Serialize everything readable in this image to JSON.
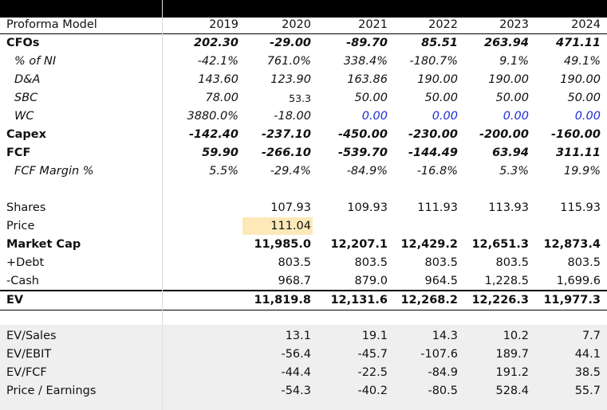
{
  "header": {
    "title": "Proforma Model",
    "years": [
      "2019",
      "2020",
      "2021",
      "2022",
      "2023",
      "2024"
    ]
  },
  "rows": [
    {
      "label": "CFOs",
      "values": [
        "202.30",
        "-29.00",
        "-89.70",
        "85.51",
        "263.94",
        "471.11"
      ]
    },
    {
      "label": "% of NI",
      "values": [
        "-42.1%",
        "761.0%",
        "338.4%",
        "-180.7%",
        "9.1%",
        "49.1%"
      ]
    },
    {
      "label": "D&A",
      "values": [
        "143.60",
        "123.90",
        "163.86",
        "190.00",
        "190.00",
        "190.00"
      ]
    },
    {
      "label": "SBC",
      "values": [
        "78.00",
        "53.3",
        "50.00",
        "50.00",
        "50.00",
        "50.00"
      ]
    },
    {
      "label": "WC",
      "values": [
        "3880.0%",
        "-18.00",
        "0.00",
        "0.00",
        "0.00",
        "0.00"
      ]
    },
    {
      "label": "Capex",
      "values": [
        "-142.40",
        "-237.10",
        "-450.00",
        "-230.00",
        "-200.00",
        "-160.00"
      ]
    },
    {
      "label": "FCF",
      "values": [
        "59.90",
        "-266.10",
        "-539.70",
        "-144.49",
        "63.94",
        "311.11"
      ]
    },
    {
      "label": "FCF Margin %",
      "values": [
        "5.5%",
        "-29.4%",
        "-84.9%",
        "-16.8%",
        "5.3%",
        "19.9%"
      ]
    },
    {
      "label": "Shares",
      "values": [
        "",
        "107.93",
        "109.93",
        "111.93",
        "113.93",
        "115.93"
      ]
    },
    {
      "label": "Price",
      "values": [
        "",
        "111.04",
        "",
        "",
        "",
        ""
      ]
    },
    {
      "label": "Market Cap",
      "values": [
        "",
        "11,985.0",
        "12,207.1",
        "12,429.2",
        "12,651.3",
        "12,873.4"
      ]
    },
    {
      "label": "+Debt",
      "values": [
        "",
        "803.5",
        "803.5",
        "803.5",
        "803.5",
        "803.5"
      ]
    },
    {
      "label": "-Cash",
      "values": [
        "",
        "968.7",
        "879.0",
        "964.5",
        "1,228.5",
        "1,699.6"
      ]
    },
    {
      "label": "EV",
      "values": [
        "",
        "11,819.8",
        "12,131.6",
        "12,268.2",
        "12,226.3",
        "11,977.3"
      ]
    },
    {
      "label": "EV/Sales",
      "values": [
        "",
        "13.1",
        "19.1",
        "14.3",
        "10.2",
        "7.7"
      ]
    },
    {
      "label": "EV/EBIT",
      "values": [
        "",
        "-56.4",
        "-45.7",
        "-107.6",
        "189.7",
        "44.1"
      ]
    },
    {
      "label": "EV/FCF",
      "values": [
        "",
        "-44.4",
        "-22.5",
        "-84.9",
        "191.2",
        "38.5"
      ]
    },
    {
      "label": "Price / Earnings",
      "values": [
        "",
        "-54.3",
        "-40.2",
        "-80.5",
        "528.4",
        "55.7"
      ]
    }
  ],
  "colors": {
    "header_bg": "#000000",
    "input_blue": "#1f2fd6",
    "price_highlight": "#fde9b8",
    "multiples_band": "#efefef"
  }
}
